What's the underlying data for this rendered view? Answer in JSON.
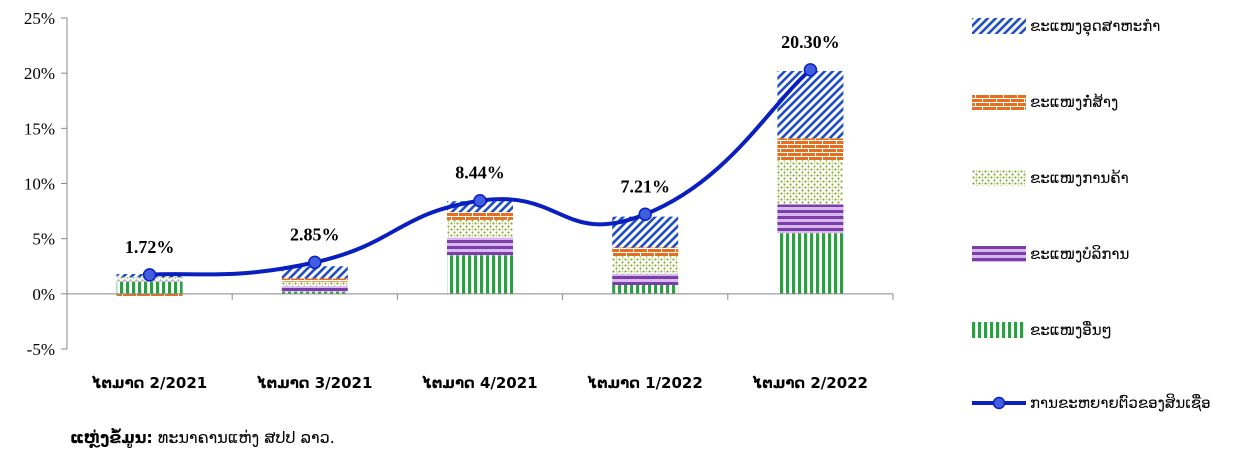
{
  "chart_data": {
    "type": "bar",
    "stacked": true,
    "categories": [
      "ໄຕມາດ 2/2021",
      "ໄຕມາດ 3/2021",
      "ໄຕມາດ 4/2021",
      "ໄຕມາດ 1/2022",
      "ໄຕມາດ 2/2022"
    ],
    "ylim": [
      -5,
      25
    ],
    "yticks": [
      "-5%",
      "0%",
      "5%",
      "10%",
      "15%",
      "20%",
      "25%"
    ],
    "grid": false,
    "legend_position": "right",
    "series": [
      {
        "name": "ຂະແໜງອຸດສາຫະກຳ",
        "values": [
          0.3,
          1.1,
          1.0,
          2.8,
          6.1
        ],
        "color": "#1f4fc1",
        "pattern": "diagonal"
      },
      {
        "name": "ຂະແໜງກໍ່ສ້າງ",
        "values": [
          -0.2,
          0.3,
          0.7,
          0.8,
          2.0
        ],
        "color": "#e46f1f",
        "pattern": "brick"
      },
      {
        "name": "ຂະແໜງການຄ້າ",
        "values": [
          0.3,
          0.4,
          1.6,
          1.6,
          4.0
        ],
        "color": "#8aa832",
        "pattern": "dots"
      },
      {
        "name": "ຂະແໜງບໍລິການ",
        "values": [
          0.1,
          0.5,
          1.6,
          1.0,
          2.6
        ],
        "color": "#7a3ea8",
        "pattern": "hstripes"
      },
      {
        "name": "ຂະແໜງອື່ນໆ",
        "values": [
          1.1,
          0.2,
          3.5,
          0.8,
          5.5
        ],
        "color": "#2aa043",
        "pattern": "vstripes"
      }
    ],
    "line": {
      "name": "ການຂະຫຍາຍຕົວຂອງສິນເຊື່ອ",
      "values": [
        1.72,
        2.85,
        8.44,
        7.21,
        20.3
      ],
      "labels": [
        "1.72%",
        "2.85%",
        "8.44%",
        "7.21%",
        "20.30%"
      ],
      "color": "#0a1fbf"
    }
  },
  "source": {
    "label": "ແຫຼ່ງຂໍ້ມູນ:",
    "text": " ທະນາຄານແຫ່ງ ສປປ ລາວ."
  }
}
